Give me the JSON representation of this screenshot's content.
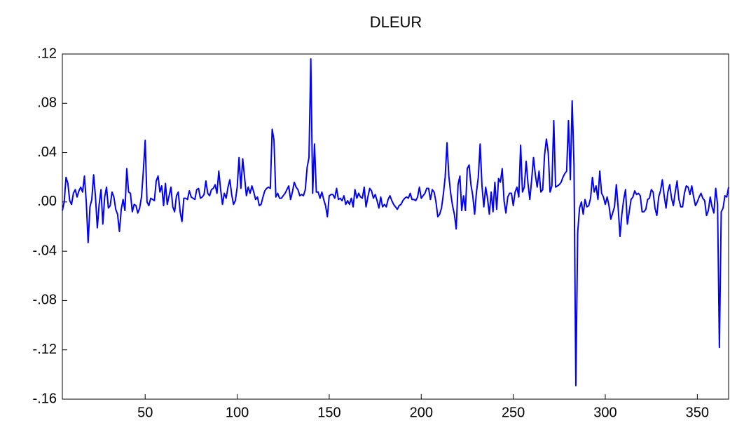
{
  "chart_data": {
    "type": "line",
    "title": "DLEUR",
    "xlim": [
      5,
      367
    ],
    "xticks": [
      50,
      100,
      150,
      200,
      250,
      300,
      350
    ],
    "ylim": [
      -0.16,
      0.12
    ],
    "yticks": [
      {
        "value": 0.12,
        "label": ".12"
      },
      {
        "value": 0.08,
        "label": ".08"
      },
      {
        "value": 0.04,
        "label": ".04"
      },
      {
        "value": 0,
        "label": ".00"
      },
      {
        "value": -0.04,
        "label": "-.04"
      },
      {
        "value": -0.08,
        "label": "-.08"
      },
      {
        "value": -0.12,
        "label": "-.12"
      },
      {
        "value": -0.16,
        "label": "-.16"
      }
    ],
    "series": [
      {
        "color": "#0000ff",
        "x": [
          5,
          6,
          7,
          8,
          9,
          10,
          11,
          12,
          13,
          14,
          15,
          16,
          17,
          18,
          19,
          20,
          21,
          22,
          23,
          24,
          25,
          26,
          27,
          28,
          29,
          30,
          31,
          32,
          33,
          34,
          35,
          36,
          37,
          38,
          39,
          40,
          41,
          42,
          43,
          44,
          45,
          46,
          47,
          48,
          49,
          50,
          51,
          52,
          53,
          54,
          55,
          56,
          57,
          58,
          59,
          60,
          61,
          62,
          63,
          64,
          65,
          66,
          67,
          68,
          69,
          70,
          71,
          72,
          73,
          74,
          75,
          76,
          77,
          78,
          79,
          80,
          81,
          82,
          83,
          84,
          85,
          86,
          87,
          88,
          89,
          90,
          91,
          92,
          93,
          94,
          95,
          96,
          97,
          98,
          99,
          100,
          101,
          102,
          103,
          104,
          105,
          106,
          107,
          108,
          109,
          110,
          111,
          112,
          113,
          114,
          115,
          116,
          117,
          118,
          119,
          120,
          121,
          122,
          123,
          124,
          125,
          126,
          127,
          128,
          129,
          130,
          131,
          132,
          133,
          134,
          135,
          136,
          137,
          138,
          139,
          140,
          141,
          142,
          143,
          144,
          145,
          146,
          147,
          148,
          149,
          150,
          151,
          152,
          153,
          154,
          155,
          156,
          157,
          158,
          159,
          160,
          161,
          162,
          163,
          164,
          165,
          166,
          167,
          168,
          169,
          170,
          171,
          172,
          173,
          174,
          175,
          176,
          177,
          178,
          179,
          180,
          181,
          182,
          183,
          184,
          185,
          186,
          187,
          188,
          189,
          190,
          191,
          192,
          193,
          194,
          195,
          196,
          197,
          198,
          199,
          200,
          201,
          202,
          203,
          204,
          205,
          206,
          207,
          208,
          209,
          210,
          211,
          212,
          213,
          214,
          215,
          216,
          217,
          218,
          219,
          220,
          221,
          222,
          223,
          224,
          225,
          226,
          227,
          228,
          229,
          230,
          231,
          232,
          233,
          234,
          235,
          236,
          237,
          238,
          239,
          240,
          241,
          242,
          243,
          244,
          245,
          246,
          247,
          248,
          249,
          250,
          251,
          252,
          253,
          254,
          255,
          256,
          257,
          258,
          259,
          260,
          261,
          262,
          263,
          264,
          265,
          266,
          267,
          268,
          269,
          270,
          271,
          272,
          273,
          274,
          275,
          276,
          277,
          278,
          279,
          280,
          281,
          282,
          283,
          284,
          285,
          286,
          287,
          288,
          289,
          290,
          291,
          292,
          293,
          294,
          295,
          296,
          297,
          298,
          299,
          300,
          301,
          302,
          303,
          304,
          305,
          306,
          307,
          308,
          309,
          310,
          311,
          312,
          313,
          314,
          315,
          316,
          317,
          318,
          319,
          320,
          321,
          322,
          323,
          324,
          325,
          326,
          327,
          328,
          329,
          330,
          331,
          332,
          333,
          334,
          335,
          336,
          337,
          338,
          339,
          340,
          341,
          342,
          343,
          344,
          345,
          346,
          347,
          348,
          349,
          350,
          351,
          352,
          353,
          354,
          355,
          356,
          357,
          358,
          359,
          360,
          361,
          362,
          363,
          364,
          365,
          366,
          367
        ],
        "values": [
          -0.007,
          0.0,
          0.02,
          0.015,
          0.001,
          -0.002,
          0.007,
          0.01,
          0.004,
          0.009,
          0.012,
          0.008,
          0.021,
          0.0,
          -0.033,
          -0.004,
          0.002,
          0.022,
          0.004,
          -0.021,
          -0.002,
          0.01,
          -0.018,
          0.004,
          0.012,
          -0.005,
          -0.003,
          0.008,
          0.004,
          -0.006,
          -0.01,
          -0.024,
          -0.006,
          0.002,
          -0.007,
          0.027,
          0.008,
          0.007,
          -0.008,
          -0.002,
          -0.003,
          -0.009,
          -0.005,
          0.004,
          0.025,
          0.05,
          0.0,
          -0.003,
          0.003,
          0.002,
          0.001,
          0.017,
          0.021,
          0.008,
          0.013,
          -0.003,
          0.015,
          -0.002,
          0.005,
          0.012,
          -0.004,
          -0.008,
          0.005,
          0.008,
          -0.008,
          -0.016,
          0.003,
          0.003,
          0.002,
          0.009,
          0.004,
          0.003,
          0.002,
          0.01,
          0.011,
          0.003,
          0.004,
          0.006,
          0.017,
          0.007,
          0.005,
          0.01,
          0.011,
          0.014,
          0.007,
          0.025,
          0.01,
          -0.002,
          0.007,
          0.003,
          0.012,
          0.018,
          0.006,
          -0.002,
          0.001,
          0.012,
          0.036,
          0.011,
          0.035,
          0.02,
          0.005,
          0.012,
          0.007,
          0.013,
          0.008,
          0.002,
          0.004,
          -0.003,
          -0.002,
          0.004,
          0.009,
          0.011,
          0.012,
          0.011,
          0.059,
          0.05,
          0.004,
          0.007,
          0.003,
          0.003,
          0.005,
          0.007,
          0.01,
          0.013,
          0.002,
          0.008,
          0.016,
          0.012,
          0.01,
          0.005,
          0.006,
          0.005,
          0.01,
          0.028,
          0.036,
          0.116,
          0.007,
          0.047,
          0.008,
          0.008,
          0.003,
          0.008,
          0.002,
          -0.003,
          -0.012,
          0.005,
          0.006,
          0.006,
          0.003,
          0.011,
          0.002,
          0.003,
          0.001,
          0.005,
          -0.002,
          0.001,
          -0.002,
          0.003,
          -0.004,
          0.01,
          0.003,
          0.007,
          0.004,
          0.003,
          0.012,
          -0.004,
          0.004,
          0.011,
          0.009,
          0.003,
          0.006,
          0.001,
          -0.005,
          0.004,
          -0.004,
          -0.002,
          -0.004,
          0.002,
          0.005,
          0.001,
          -0.002,
          -0.004,
          -0.006,
          -0.003,
          -0.002,
          0.001,
          0.003,
          0.004,
          0.003,
          0.007,
          0.002,
          0.002,
          0.001,
          0.004,
          0.012,
          0.003,
          0.005,
          0.007,
          0.011,
          0.011,
          0.002,
          0.01,
          0.008,
          0.0,
          -0.012,
          -0.01,
          -0.005,
          0.006,
          0.02,
          0.048,
          0.021,
          0.007,
          -0.003,
          -0.01,
          -0.022,
          0.014,
          0.021,
          -0.007,
          0.005,
          -0.007,
          0.027,
          0.03,
          0.014,
          0.005,
          -0.01,
          0.008,
          0.02,
          0.047,
          0.013,
          -0.004,
          0.012,
          0.003,
          -0.01,
          0.008,
          -0.008,
          0.016,
          -0.006,
          0.019,
          0.016,
          0.027,
          0.001,
          -0.009,
          0.004,
          0.007,
          0.007,
          -0.003,
          0.008,
          0.012,
          0.004,
          0.046,
          0.008,
          0.012,
          0.033,
          0.015,
          0.002,
          0.018,
          0.036,
          0.022,
          0.012,
          0.025,
          0.008,
          0.01,
          0.038,
          0.051,
          0.04,
          0.008,
          0.013,
          0.066,
          0.012,
          0.013,
          0.014,
          0.016,
          0.02,
          0.023,
          0.025,
          0.066,
          0.018,
          0.082,
          0.03,
          -0.149,
          -0.025,
          -0.005,
          0.0,
          -0.01,
          0.002,
          -0.004,
          -0.003,
          0.003,
          0.02,
          0.008,
          0.013,
          0.002,
          0.025,
          0.007,
          0.004,
          -0.002,
          0.004,
          -0.003,
          -0.014,
          -0.009,
          -0.004,
          0.014,
          -0.005,
          -0.028,
          -0.01,
          0.002,
          0.01,
          -0.018,
          -0.008,
          0.002,
          0.004,
          0.009,
          0.006,
          0.007,
          0.005,
          -0.008,
          -0.008,
          -0.006,
          0.002,
          0.003,
          0.01,
          0.008,
          -0.005,
          -0.011,
          0.004,
          0.009,
          0.018,
          0.005,
          -0.005,
          0.008,
          0.014,
          0.003,
          -0.003,
          0.008,
          0.017,
          0.002,
          -0.004,
          -0.004,
          0.007,
          0.013,
          0.012,
          0.006,
          0.013,
          0.004,
          -0.003,
          0.0,
          0.004,
          0.007,
          0.003,
          0.001,
          -0.011,
          -0.007,
          0.004,
          -0.004,
          -0.009,
          0.011,
          -0.002,
          -0.118,
          -0.008,
          -0.005,
          0.005,
          0.004,
          0.012
        ]
      }
    ]
  }
}
